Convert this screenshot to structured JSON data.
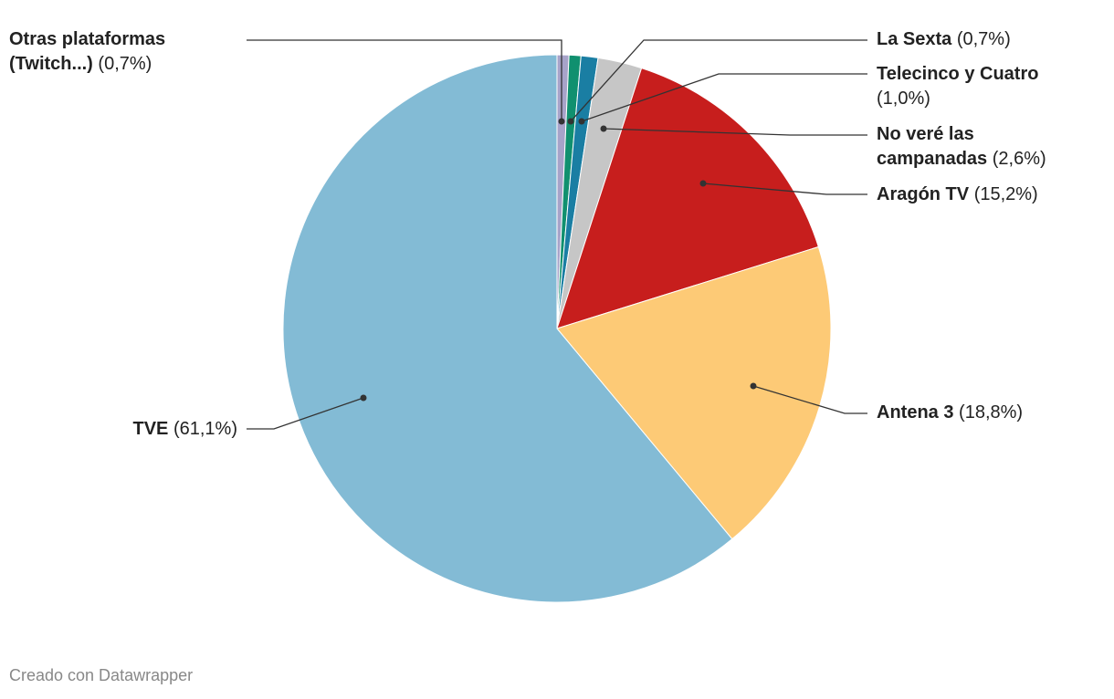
{
  "chart_data": {
    "type": "pie",
    "categories": [
      "Otras plataformas (Twitch...)",
      "La Sexta",
      "Telecinco y Cuatro",
      "No veré las campanadas",
      "Aragón TV",
      "Antena 3",
      "TVE"
    ],
    "values": [
      0.7,
      0.7,
      1.0,
      2.6,
      15.2,
      18.8,
      61.1
    ],
    "value_labels": [
      "(0,7%)",
      "(0,7%)",
      "(1,0%)",
      "(2,6%)",
      "(15,2%)",
      "(18,8%)",
      "(61,1%)"
    ],
    "colors": [
      "#a7a3c9",
      "#10906f",
      "#1a7ea3",
      "#c6c6c6",
      "#c71e1d",
      "#fdca76",
      "#83bbd5"
    ],
    "footer": "Creado con Datawrapper"
  }
}
